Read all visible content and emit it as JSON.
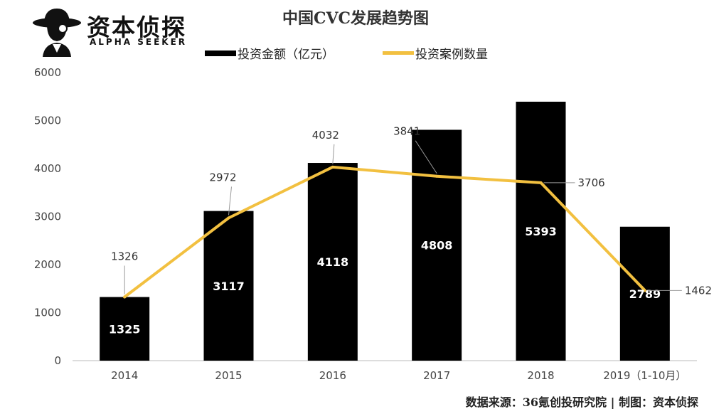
{
  "logo": {
    "name": "资本侦探",
    "subtitle": "ALPHA SEEKER"
  },
  "footer": {
    "source": "数据来源：36氪创投研究院 | 制图：资本侦探"
  },
  "colors": {
    "bar": "#000000",
    "line": "#F2C040",
    "bar_label": "#ffffff",
    "axis_text": "#444444"
  },
  "chart_data": {
    "type": "bar",
    "title": "中国CVC发展趋势图",
    "categories": [
      "2014",
      "2015",
      "2016",
      "2017",
      "2018",
      "2019（1-10月）"
    ],
    "ylim": [
      0,
      6000
    ],
    "yticks": [
      0,
      1000,
      2000,
      3000,
      4000,
      5000,
      6000
    ],
    "series": [
      {
        "name": "投资金额（亿元）",
        "type": "bar",
        "values": [
          1325,
          3117,
          4118,
          4808,
          5393,
          2789
        ]
      },
      {
        "name": "投资案例数量",
        "type": "line",
        "values": [
          1326,
          2972,
          4032,
          3841,
          3706,
          1462
        ]
      }
    ]
  }
}
